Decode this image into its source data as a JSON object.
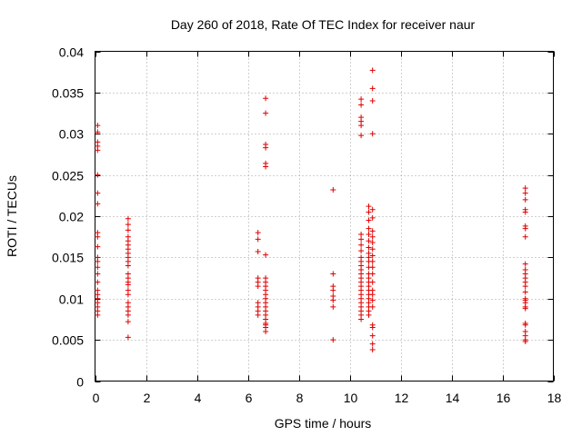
{
  "chart_data": {
    "type": "scatter",
    "title": "Day 260 of 2018, Rate Of TEC Index for receiver naur",
    "xlabel": "GPS time / hours",
    "ylabel": "ROTI / TECUs",
    "xlim": [
      0,
      18
    ],
    "ylim": [
      0,
      0.04
    ],
    "xticks": [
      0,
      2,
      4,
      6,
      8,
      10,
      12,
      14,
      16,
      18
    ],
    "xtick_labels": [
      "0",
      "2",
      "4",
      "6",
      "8",
      "10",
      "12",
      "14",
      "16",
      "18"
    ],
    "yticks": [
      0,
      0.005,
      0.01,
      0.015,
      0.02,
      0.025,
      0.03,
      0.035,
      0.04
    ],
    "ytick_labels": [
      "0",
      "0.005",
      "0.01",
      "0.015",
      "0.02",
      "0.025",
      "0.03",
      "0.035",
      "0.04"
    ],
    "grid": true,
    "marker": "+",
    "color": "#e00000",
    "series": [
      {
        "name": "ROTI",
        "points": [
          [
            0.1,
            0.031
          ],
          [
            0.1,
            0.0302
          ],
          [
            0.1,
            0.029
          ],
          [
            0.1,
            0.0285
          ],
          [
            0.1,
            0.028
          ],
          [
            0.1,
            0.025
          ],
          [
            0.1,
            0.0228
          ],
          [
            0.1,
            0.0215
          ],
          [
            0.1,
            0.018
          ],
          [
            0.1,
            0.0175
          ],
          [
            0.1,
            0.0163
          ],
          [
            0.1,
            0.015
          ],
          [
            0.1,
            0.0145
          ],
          [
            0.1,
            0.0138
          ],
          [
            0.1,
            0.013
          ],
          [
            0.1,
            0.012
          ],
          [
            0.1,
            0.011
          ],
          [
            0.1,
            0.0105
          ],
          [
            0.1,
            0.01
          ],
          [
            0.1,
            0.0095
          ],
          [
            0.1,
            0.009
          ],
          [
            0.1,
            0.0085
          ],
          [
            0.1,
            0.008
          ],
          [
            1.3,
            0.0197
          ],
          [
            1.3,
            0.019
          ],
          [
            1.3,
            0.0183
          ],
          [
            1.3,
            0.0175
          ],
          [
            1.3,
            0.017
          ],
          [
            1.3,
            0.0165
          ],
          [
            1.3,
            0.016
          ],
          [
            1.3,
            0.0155
          ],
          [
            1.3,
            0.015
          ],
          [
            1.3,
            0.0145
          ],
          [
            1.3,
            0.014
          ],
          [
            1.3,
            0.013
          ],
          [
            1.3,
            0.0125
          ],
          [
            1.3,
            0.012
          ],
          [
            1.3,
            0.0117
          ],
          [
            1.3,
            0.011
          ],
          [
            1.3,
            0.0105
          ],
          [
            1.3,
            0.0095
          ],
          [
            1.3,
            0.009
          ],
          [
            1.3,
            0.0085
          ],
          [
            1.3,
            0.008
          ],
          [
            1.3,
            0.0072
          ],
          [
            1.3,
            0.0053
          ],
          [
            6.4,
            0.018
          ],
          [
            6.4,
            0.0172
          ],
          [
            6.4,
            0.0157
          ],
          [
            6.4,
            0.0125
          ],
          [
            6.4,
            0.012
          ],
          [
            6.4,
            0.0115
          ],
          [
            6.4,
            0.0095
          ],
          [
            6.4,
            0.009
          ],
          [
            6.4,
            0.0085
          ],
          [
            6.4,
            0.008
          ],
          [
            6.7,
            0.0343
          ],
          [
            6.7,
            0.0325
          ],
          [
            6.7,
            0.0287
          ],
          [
            6.7,
            0.0283
          ],
          [
            6.7,
            0.0264
          ],
          [
            6.7,
            0.026
          ],
          [
            6.7,
            0.0153
          ],
          [
            6.7,
            0.0125
          ],
          [
            6.7,
            0.012
          ],
          [
            6.7,
            0.0115
          ],
          [
            6.7,
            0.011
          ],
          [
            6.7,
            0.0105
          ],
          [
            6.7,
            0.01
          ],
          [
            6.7,
            0.0095
          ],
          [
            6.7,
            0.009
          ],
          [
            6.7,
            0.0085
          ],
          [
            6.7,
            0.008
          ],
          [
            6.7,
            0.0075
          ],
          [
            6.7,
            0.007
          ],
          [
            6.7,
            0.0068
          ],
          [
            6.7,
            0.0065
          ],
          [
            6.7,
            0.006
          ],
          [
            9.35,
            0.0232
          ],
          [
            9.35,
            0.013
          ],
          [
            9.35,
            0.0115
          ],
          [
            9.35,
            0.011
          ],
          [
            9.35,
            0.0103
          ],
          [
            9.35,
            0.0098
          ],
          [
            9.35,
            0.009
          ],
          [
            9.35,
            0.005
          ],
          [
            10.45,
            0.0342
          ],
          [
            10.45,
            0.0335
          ],
          [
            10.45,
            0.032
          ],
          [
            10.45,
            0.0315
          ],
          [
            10.45,
            0.031
          ],
          [
            10.45,
            0.0298
          ],
          [
            10.45,
            0.0178
          ],
          [
            10.45,
            0.0172
          ],
          [
            10.45,
            0.0165
          ],
          [
            10.45,
            0.0158
          ],
          [
            10.45,
            0.015
          ],
          [
            10.45,
            0.0145
          ],
          [
            10.45,
            0.014
          ],
          [
            10.45,
            0.0135
          ],
          [
            10.45,
            0.013
          ],
          [
            10.45,
            0.0125
          ],
          [
            10.45,
            0.012
          ],
          [
            10.45,
            0.0115
          ],
          [
            10.45,
            0.011
          ],
          [
            10.45,
            0.0105
          ],
          [
            10.45,
            0.01
          ],
          [
            10.45,
            0.0095
          ],
          [
            10.45,
            0.009
          ],
          [
            10.45,
            0.0085
          ],
          [
            10.45,
            0.008
          ],
          [
            10.45,
            0.0075
          ],
          [
            10.75,
            0.0212
          ],
          [
            10.75,
            0.0205
          ],
          [
            10.75,
            0.0195
          ],
          [
            10.75,
            0.0185
          ],
          [
            10.75,
            0.0178
          ],
          [
            10.75,
            0.017
          ],
          [
            10.75,
            0.0162
          ],
          [
            10.75,
            0.0155
          ],
          [
            10.75,
            0.015
          ],
          [
            10.75,
            0.0145
          ],
          [
            10.75,
            0.0138
          ],
          [
            10.75,
            0.013
          ],
          [
            10.75,
            0.0125
          ],
          [
            10.75,
            0.012
          ],
          [
            10.75,
            0.0115
          ],
          [
            10.75,
            0.011
          ],
          [
            10.75,
            0.0105
          ],
          [
            10.75,
            0.01
          ],
          [
            10.75,
            0.0095
          ],
          [
            10.75,
            0.009
          ],
          [
            10.75,
            0.0085
          ],
          [
            10.75,
            0.008
          ],
          [
            10.9,
            0.0377
          ],
          [
            10.9,
            0.0355
          ],
          [
            10.9,
            0.034
          ],
          [
            10.9,
            0.03
          ],
          [
            10.9,
            0.0208
          ],
          [
            10.9,
            0.0198
          ],
          [
            10.9,
            0.0182
          ],
          [
            10.9,
            0.0175
          ],
          [
            10.9,
            0.0168
          ],
          [
            10.9,
            0.016
          ],
          [
            10.9,
            0.0152
          ],
          [
            10.9,
            0.0145
          ],
          [
            10.9,
            0.0138
          ],
          [
            10.9,
            0.013
          ],
          [
            10.9,
            0.012
          ],
          [
            10.9,
            0.011
          ],
          [
            10.9,
            0.0105
          ],
          [
            10.9,
            0.0098
          ],
          [
            10.9,
            0.009
          ],
          [
            10.9,
            0.0068
          ],
          [
            10.9,
            0.0065
          ],
          [
            10.9,
            0.0055
          ],
          [
            10.9,
            0.0045
          ],
          [
            10.9,
            0.0038
          ],
          [
            16.9,
            0.0234
          ],
          [
            16.9,
            0.0228
          ],
          [
            16.9,
            0.022
          ],
          [
            16.9,
            0.0208
          ],
          [
            16.9,
            0.0205
          ],
          [
            16.9,
            0.0188
          ],
          [
            16.9,
            0.0185
          ],
          [
            16.9,
            0.0175
          ],
          [
            16.9,
            0.0142
          ],
          [
            16.9,
            0.0135
          ],
          [
            16.9,
            0.013
          ],
          [
            16.9,
            0.0125
          ],
          [
            16.9,
            0.012
          ],
          [
            16.9,
            0.0115
          ],
          [
            16.9,
            0.0108
          ],
          [
            16.9,
            0.01
          ],
          [
            16.9,
            0.0098
          ],
          [
            16.9,
            0.0095
          ],
          [
            16.9,
            0.009
          ],
          [
            16.9,
            0.0088
          ],
          [
            16.9,
            0.007
          ],
          [
            16.9,
            0.0068
          ],
          [
            16.9,
            0.006
          ],
          [
            16.9,
            0.0055
          ],
          [
            16.9,
            0.005
          ],
          [
            16.9,
            0.0048
          ]
        ]
      }
    ]
  }
}
